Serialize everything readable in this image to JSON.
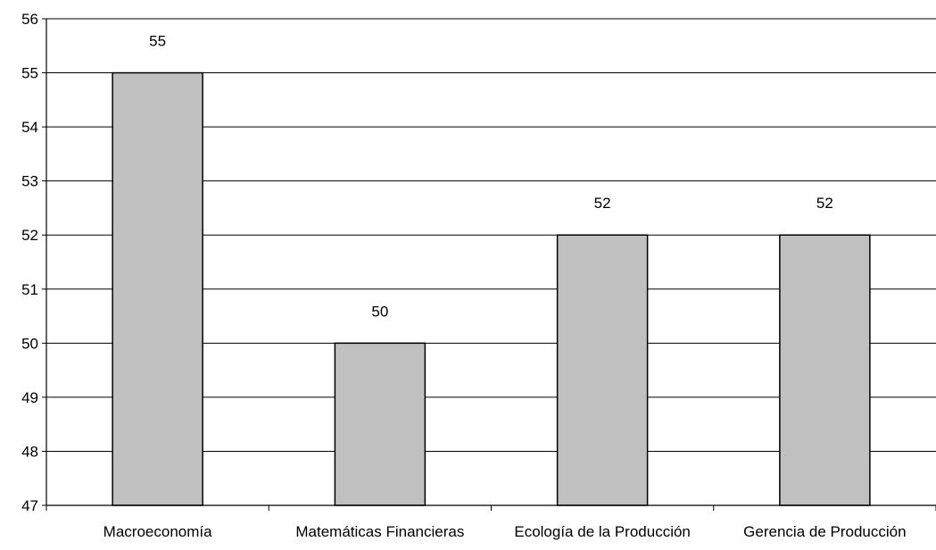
{
  "chart_data": {
    "type": "bar",
    "categories": [
      "Macroeconomía",
      "Matemáticas Financieras",
      "Ecología de la Producción",
      "Gerencia de Producción"
    ],
    "values": [
      55,
      50,
      52,
      52
    ],
    "data_labels": [
      "55",
      "50",
      "52",
      "52"
    ],
    "title": "",
    "xlabel": "",
    "ylabel": "",
    "ylim": [
      47,
      56
    ],
    "yticks": [
      "47",
      "48",
      "49",
      "50",
      "51",
      "52",
      "53",
      "54",
      "55",
      "56"
    ],
    "grid": true,
    "legend": "none",
    "colors": {
      "bar_fill": "#c0c0c0",
      "bar_stroke": "#000000",
      "grid": "#000000",
      "background": "#ffffff"
    }
  }
}
